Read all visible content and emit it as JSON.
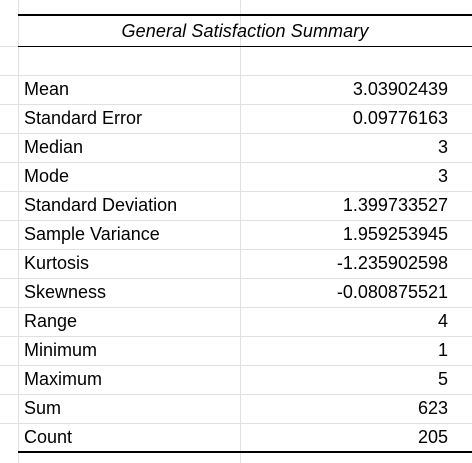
{
  "summary": {
    "title": "General Satisfaction Summary",
    "rows": [
      {
        "label": "Mean",
        "value": "3.03902439"
      },
      {
        "label": "Standard Error",
        "value": "0.09776163"
      },
      {
        "label": "Median",
        "value": "3"
      },
      {
        "label": "Mode",
        "value": "3"
      },
      {
        "label": "Standard Deviation",
        "value": "1.399733527"
      },
      {
        "label": "Sample Variance",
        "value": "1.959253945"
      },
      {
        "label": "Kurtosis",
        "value": "-1.235902598"
      },
      {
        "label": "Skewness",
        "value": "-0.080875521"
      },
      {
        "label": "Range",
        "value": "4"
      },
      {
        "label": "Minimum",
        "value": "1"
      },
      {
        "label": "Maximum",
        "value": "5"
      },
      {
        "label": "Sum",
        "value": "623"
      },
      {
        "label": "Count",
        "value": "205"
      }
    ]
  }
}
